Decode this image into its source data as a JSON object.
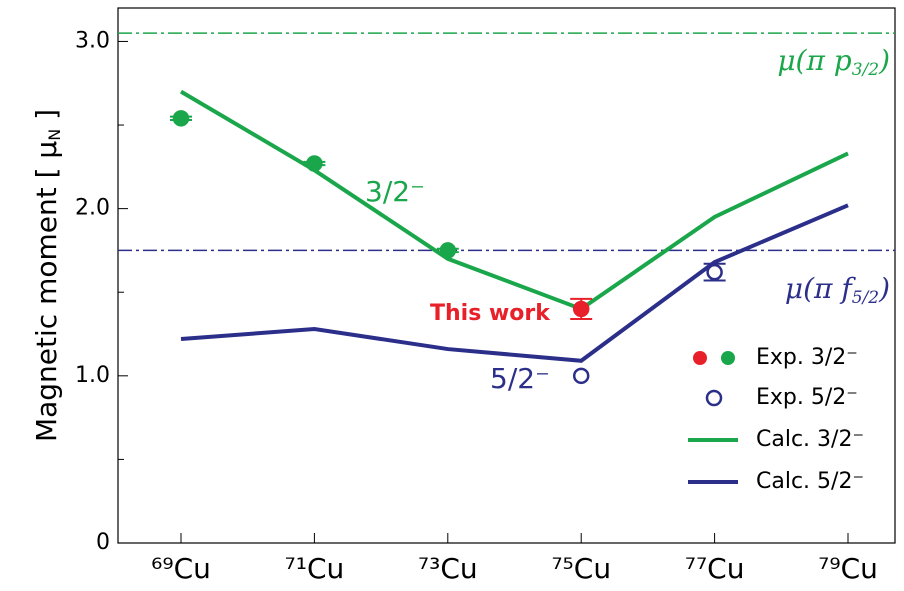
{
  "chart_data": {
    "type": "line",
    "y_label": {
      "main": "Magnetic moment [ μ",
      "sub": "N",
      "close": " ]"
    },
    "categories": [
      "⁶⁹Cu",
      "⁷¹Cu",
      "⁷³Cu",
      "⁷⁵Cu",
      "⁷⁷Cu",
      "⁷⁹Cu"
    ],
    "ylim": [
      0,
      3.2
    ],
    "yticks": [
      0,
      {
        "value": 1,
        "label": "1.0"
      },
      {
        "value": 2,
        "label": "2.0"
      },
      {
        "value": 3,
        "label": "3.0"
      }
    ],
    "minor_yticks": [
      0.5,
      1.5,
      2.5
    ],
    "series": [
      {
        "name": "Exp. 3/2⁻",
        "kind": "points",
        "filled": true,
        "color": "#1aa64a",
        "point_colors": [
          "#1aa64a",
          "#1aa64a",
          "#1aa64a",
          "#e8202a",
          null,
          null
        ],
        "values": [
          2.54,
          2.27,
          1.75,
          1.4,
          null,
          null
        ],
        "errors": [
          0.01,
          0.01,
          0.01,
          0.06,
          null,
          null
        ]
      },
      {
        "name": "Exp. 5/2⁻",
        "kind": "points",
        "filled": false,
        "color": "#2b2f8a",
        "values": [
          null,
          null,
          null,
          1.0,
          1.62,
          null
        ],
        "errors": [
          null,
          null,
          null,
          null,
          0.05,
          null
        ]
      },
      {
        "name": "Calc. 3/2⁻",
        "kind": "line",
        "color": "#1aa64a",
        "values": [
          2.7,
          2.23,
          1.7,
          1.4,
          1.95,
          2.33
        ]
      },
      {
        "name": "Calc. 5/2⁻",
        "kind": "line",
        "color": "#2b2f8a",
        "values": [
          1.22,
          1.28,
          1.16,
          1.09,
          1.68,
          2.02
        ]
      }
    ],
    "reference_lines": [
      {
        "value": 3.05,
        "color": "#1aa64a",
        "label": {
          "main": "μ(π p",
          "sub": "3/2",
          "close": ")"
        }
      },
      {
        "value": 1.75,
        "color": "#2b2f8a",
        "label": {
          "main": "μ(π f",
          "sub": "5/2",
          "close": ")"
        }
      }
    ],
    "annotations": [
      {
        "text": "3/2⁻",
        "color": "#1aa64a"
      },
      {
        "text": "5/2⁻",
        "color": "#2b2f8a"
      },
      {
        "text": "This work",
        "color": "#e8202a"
      }
    ]
  }
}
